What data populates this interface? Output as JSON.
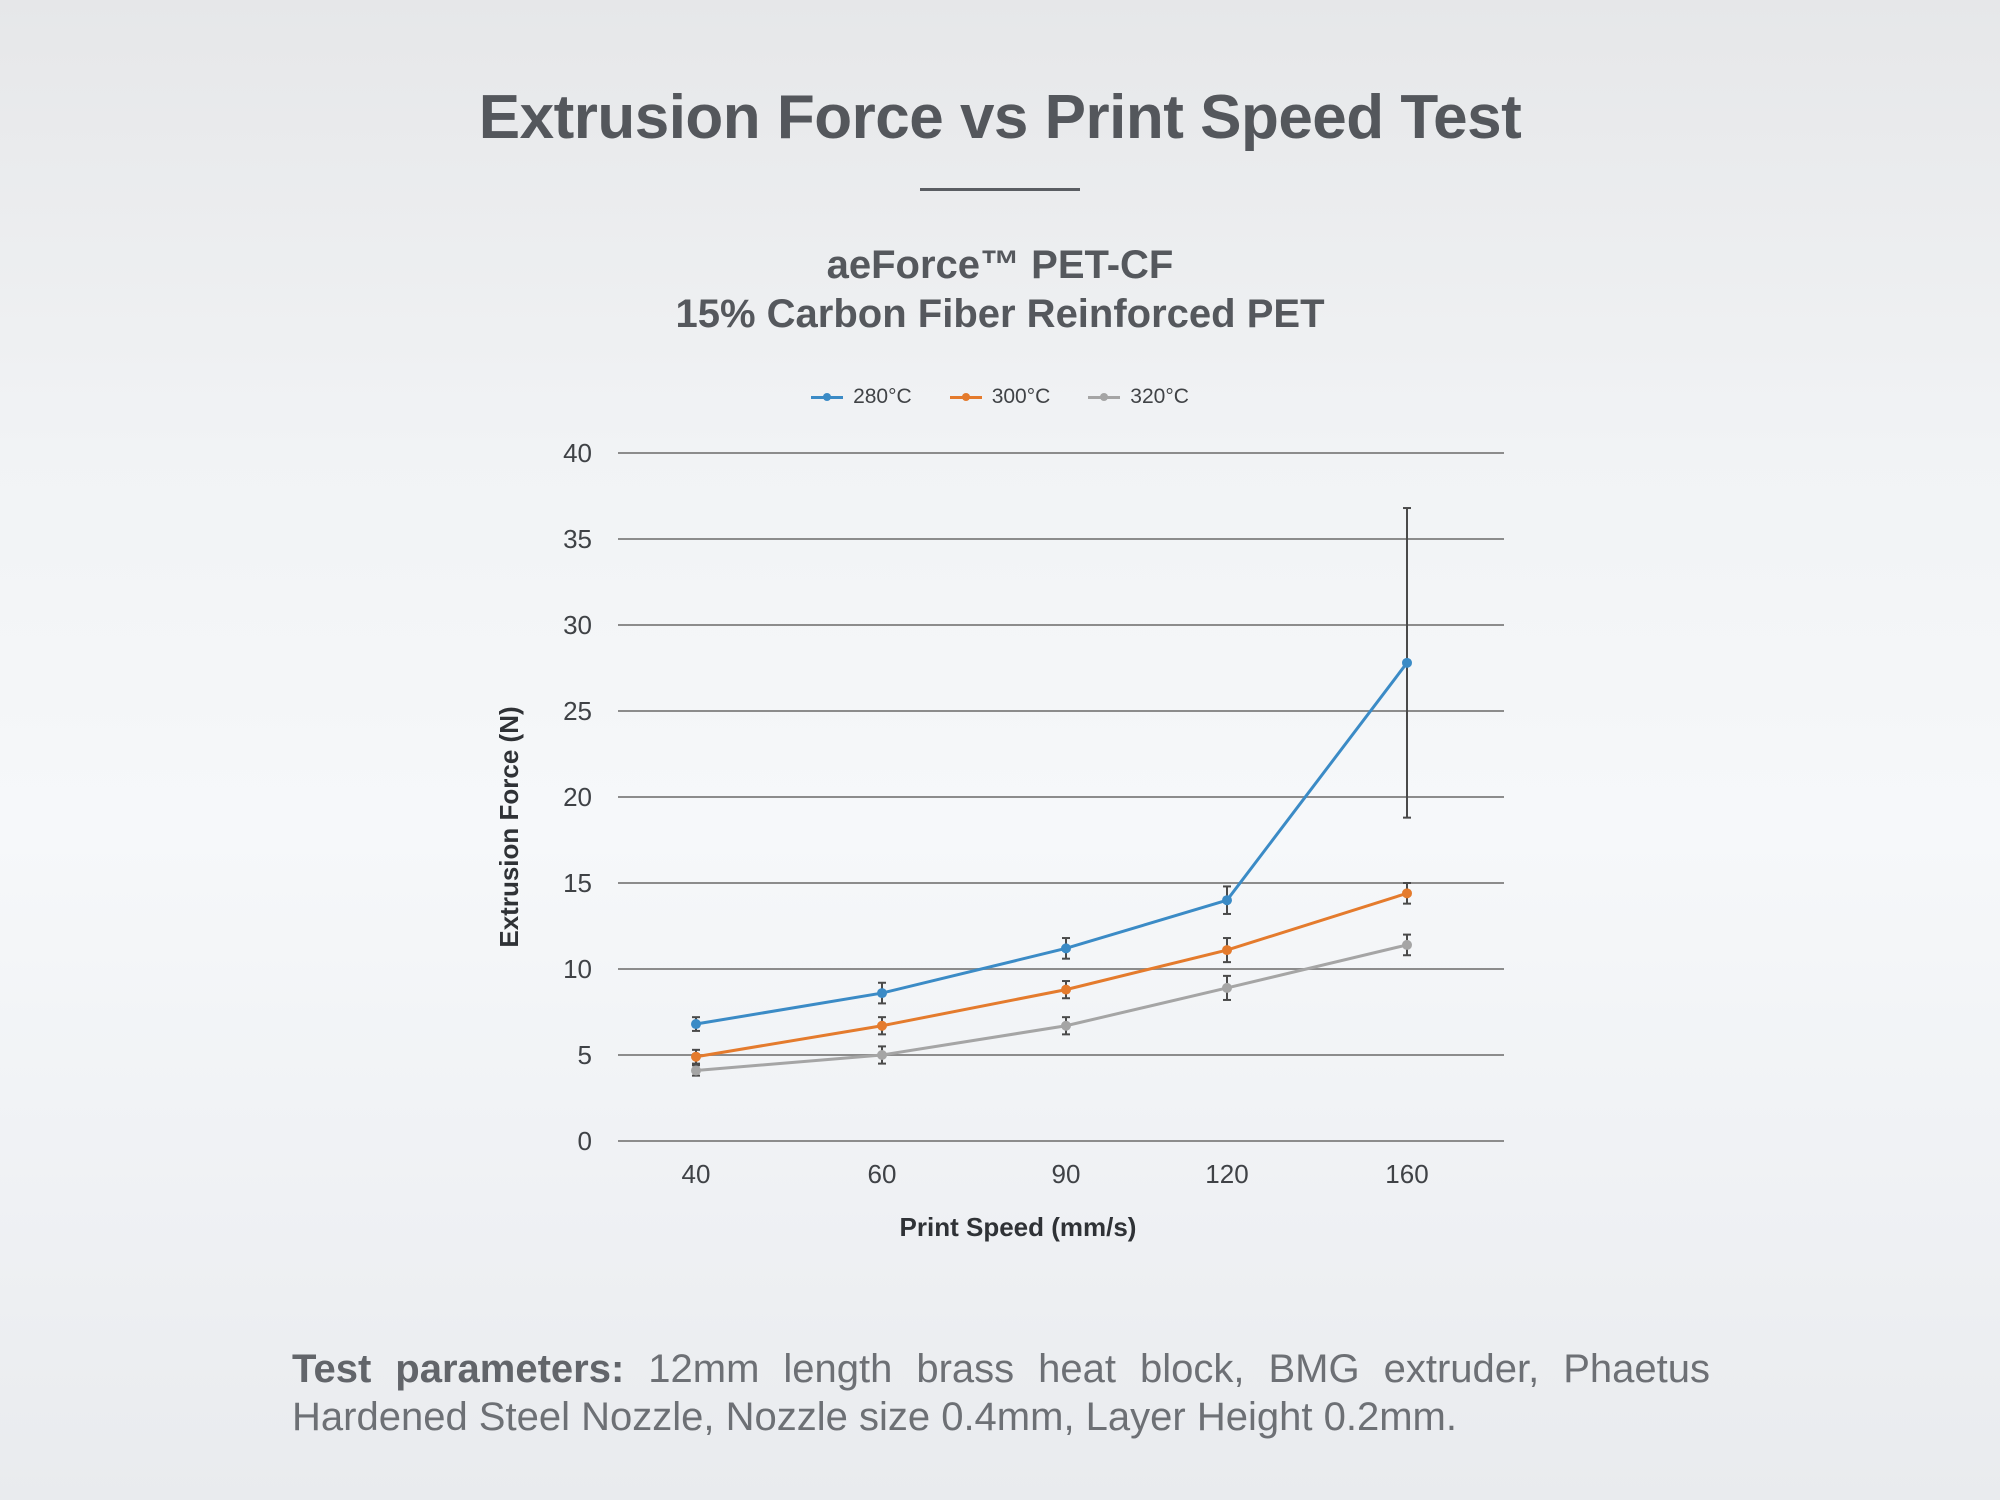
{
  "title": "Extrusion Force vs Print Speed Test",
  "subtitle_line1": "aeForce™ PET-CF",
  "subtitle_line2": "15% Carbon Fiber Reinforced PET",
  "colors": {
    "series_280": "#3b8bc6",
    "series_300": "#e47b2d",
    "series_320": "#a5a5a5",
    "error_bar": "#4a4a4a",
    "grid": "#8c8c8c"
  },
  "footnote": {
    "label": "Test parameters:",
    "text": " 12mm length brass heat block, BMG extruder, Phaetus Hardened Steel Nozzle, Nozzle size 0.4mm, Layer Height 0.2mm."
  },
  "chart_data": {
    "type": "line",
    "xlabel": "Print Speed (mm/s)",
    "ylabel": "Extrusion Force (N)",
    "categories": [
      "40",
      "60",
      "90",
      "120",
      "160"
    ],
    "ylim": [
      0,
      40
    ],
    "yticks": [
      0,
      5,
      10,
      15,
      20,
      25,
      30,
      35,
      40
    ],
    "grid": true,
    "legend_position": "top-center",
    "series": [
      {
        "name": "280°C",
        "color": "#3b8bc6",
        "values": [
          6.8,
          8.6,
          11.2,
          14.0,
          27.8
        ],
        "errors": [
          0.4,
          0.6,
          0.6,
          0.8,
          9.0
        ]
      },
      {
        "name": "300°C",
        "color": "#e47b2d",
        "values": [
          4.9,
          6.7,
          8.8,
          11.1,
          14.4
        ],
        "errors": [
          0.4,
          0.5,
          0.5,
          0.7,
          0.6
        ]
      },
      {
        "name": "320°C",
        "color": "#a5a5a5",
        "values": [
          4.1,
          5.0,
          6.7,
          8.9,
          11.4
        ],
        "errors": [
          0.3,
          0.5,
          0.5,
          0.7,
          0.6
        ]
      }
    ]
  }
}
